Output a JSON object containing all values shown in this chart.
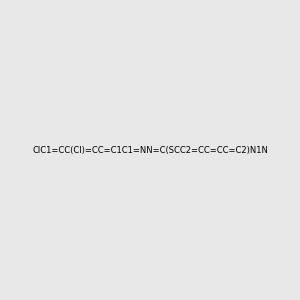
{
  "smiles": "ClC1=CC(Cl)=CC=C1C1=NN=C(SCC2=CC=CC=C2)N1N",
  "title": "",
  "bg_color": "#e8e8e8",
  "img_size": [
    300,
    300
  ],
  "atom_color_map": {
    "N": "#0000FF",
    "S": "#CCAA00",
    "Cl": "#00AA00",
    "C": "#000000",
    "H": "#4AACAC"
  }
}
